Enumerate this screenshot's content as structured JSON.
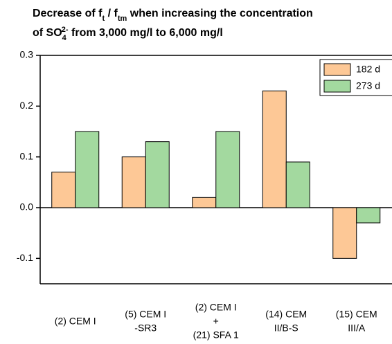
{
  "chart_data": {
    "type": "bar",
    "title": [
      [
        {
          "text": "Decrease of f"
        },
        {
          "text": "t",
          "shift": "sub"
        },
        {
          "text": " / f"
        },
        {
          "text": "tm",
          "shift": "sub"
        },
        {
          "text": " when increasing the concentration"
        }
      ],
      [
        {
          "text": "of SO"
        },
        {
          "text": "4",
          "shift": "sub"
        },
        {
          "text": "2-",
          "shift": "super"
        },
        {
          "text": " from 3,000 mg/l to 6,000 mg/l"
        }
      ]
    ],
    "categories": [
      [
        "(2) CEM I"
      ],
      [
        "(5) CEM I",
        "-SR3"
      ],
      [
        "(2) CEM I",
        "+",
        "(21) SFA 1"
      ],
      [
        "(14) CEM",
        "II/B-S"
      ],
      [
        "(15) CEM",
        "III/A"
      ]
    ],
    "series": [
      {
        "name": "182 d",
        "color": "#fdc896",
        "values": [
          0.07,
          0.1,
          0.02,
          0.23,
          -0.1
        ]
      },
      {
        "name": "273 d",
        "color": "#a3d99f",
        "values": [
          0.15,
          0.13,
          0.15,
          0.09,
          -0.03
        ]
      }
    ],
    "ylim": [
      -0.15,
      0.3
    ],
    "yticks": [
      0.3,
      0.2,
      0.1,
      {
        "value": 0,
        "label": "0.0"
      },
      -0.1
    ],
    "legend": "upper right"
  }
}
